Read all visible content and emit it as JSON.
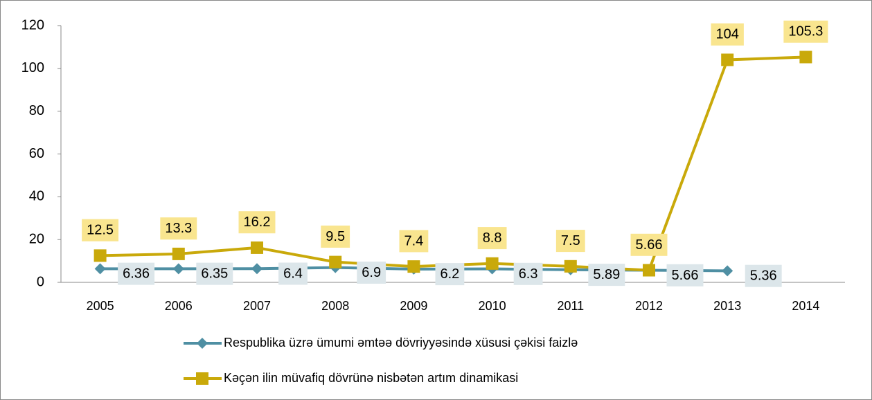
{
  "chart_data": {
    "type": "line",
    "categories": [
      "2005",
      "2006",
      "2007",
      "2008",
      "2009",
      "2010",
      "2011",
      "2012",
      "2013",
      "2014"
    ],
    "series": [
      {
        "name": "Respublika üzrə ümumi əmtəə dövriyyəsində xüsusi çəkisi faizlə",
        "color": "#4f8fa3",
        "marker": "diamond",
        "label_color": "#dce6ea",
        "values": [
          6.36,
          6.35,
          6.4,
          6.9,
          6.2,
          6.3,
          5.89,
          5.66,
          5.36,
          null
        ]
      },
      {
        "name": "Kəçən ilin müvafiq dövrünə nisbətən artım dinamikasi",
        "color": "#c9a90a",
        "marker": "square",
        "label_color": "#f9e58f",
        "values": [
          12.5,
          13.3,
          16.2,
          9.5,
          7.4,
          8.8,
          7.5,
          5.66,
          104,
          105.3
        ]
      }
    ],
    "ylim": [
      0,
      120
    ],
    "yticks": [
      0,
      20,
      40,
      60,
      80,
      100,
      120
    ],
    "grid": false
  }
}
